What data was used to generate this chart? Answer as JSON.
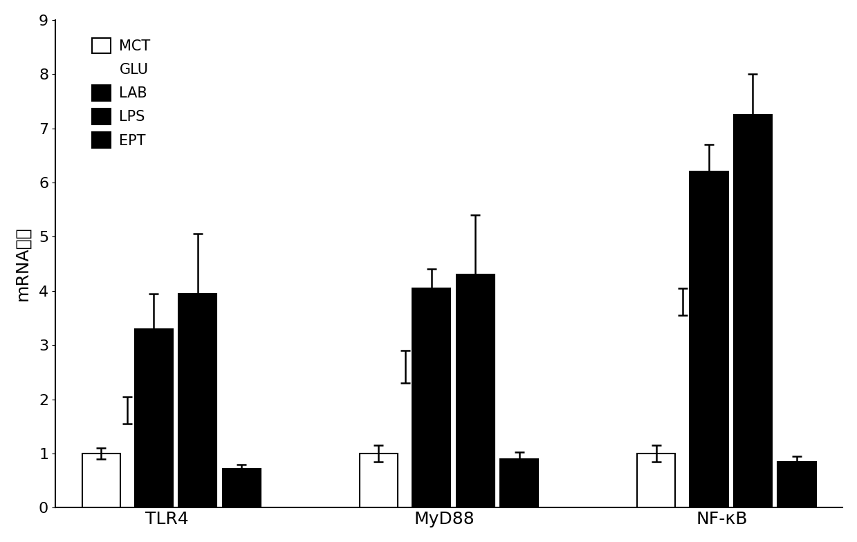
{
  "groups": [
    "TLR4",
    "MyD88",
    "NF-κB"
  ],
  "values": {
    "MCT": [
      1.0,
      1.0,
      1.0
    ],
    "LAB": [
      3.3,
      4.05,
      6.2
    ],
    "LPS": [
      3.95,
      4.3,
      7.25
    ],
    "EPT": [
      0.72,
      0.9,
      0.85
    ]
  },
  "errors": {
    "MCT": [
      0.1,
      0.15,
      0.15
    ],
    "LAB": [
      0.65,
      0.35,
      0.5
    ],
    "LPS": [
      1.1,
      1.1,
      0.75
    ],
    "EPT": [
      0.08,
      0.12,
      0.1
    ]
  },
  "glu_errors": {
    "y": [
      1.8,
      2.6,
      3.8
    ],
    "err": [
      0.25,
      0.3,
      0.25
    ]
  },
  "bar_colors": {
    "MCT": "#ffffff",
    "LAB": "#000000",
    "LPS": "#000000",
    "EPT": "#000000"
  },
  "bar_width": 0.55,
  "group_centers": [
    1.5,
    5.5,
    9.5
  ],
  "ylabel": "mRNA表达",
  "ylim": [
    0,
    9
  ],
  "yticks": [
    0,
    1,
    2,
    3,
    4,
    5,
    6,
    7,
    8,
    9
  ],
  "background_color": "#ffffff",
  "capsize": 5,
  "fontsize_ticks": 16,
  "fontsize_label": 18,
  "fontsize_legend": 15
}
